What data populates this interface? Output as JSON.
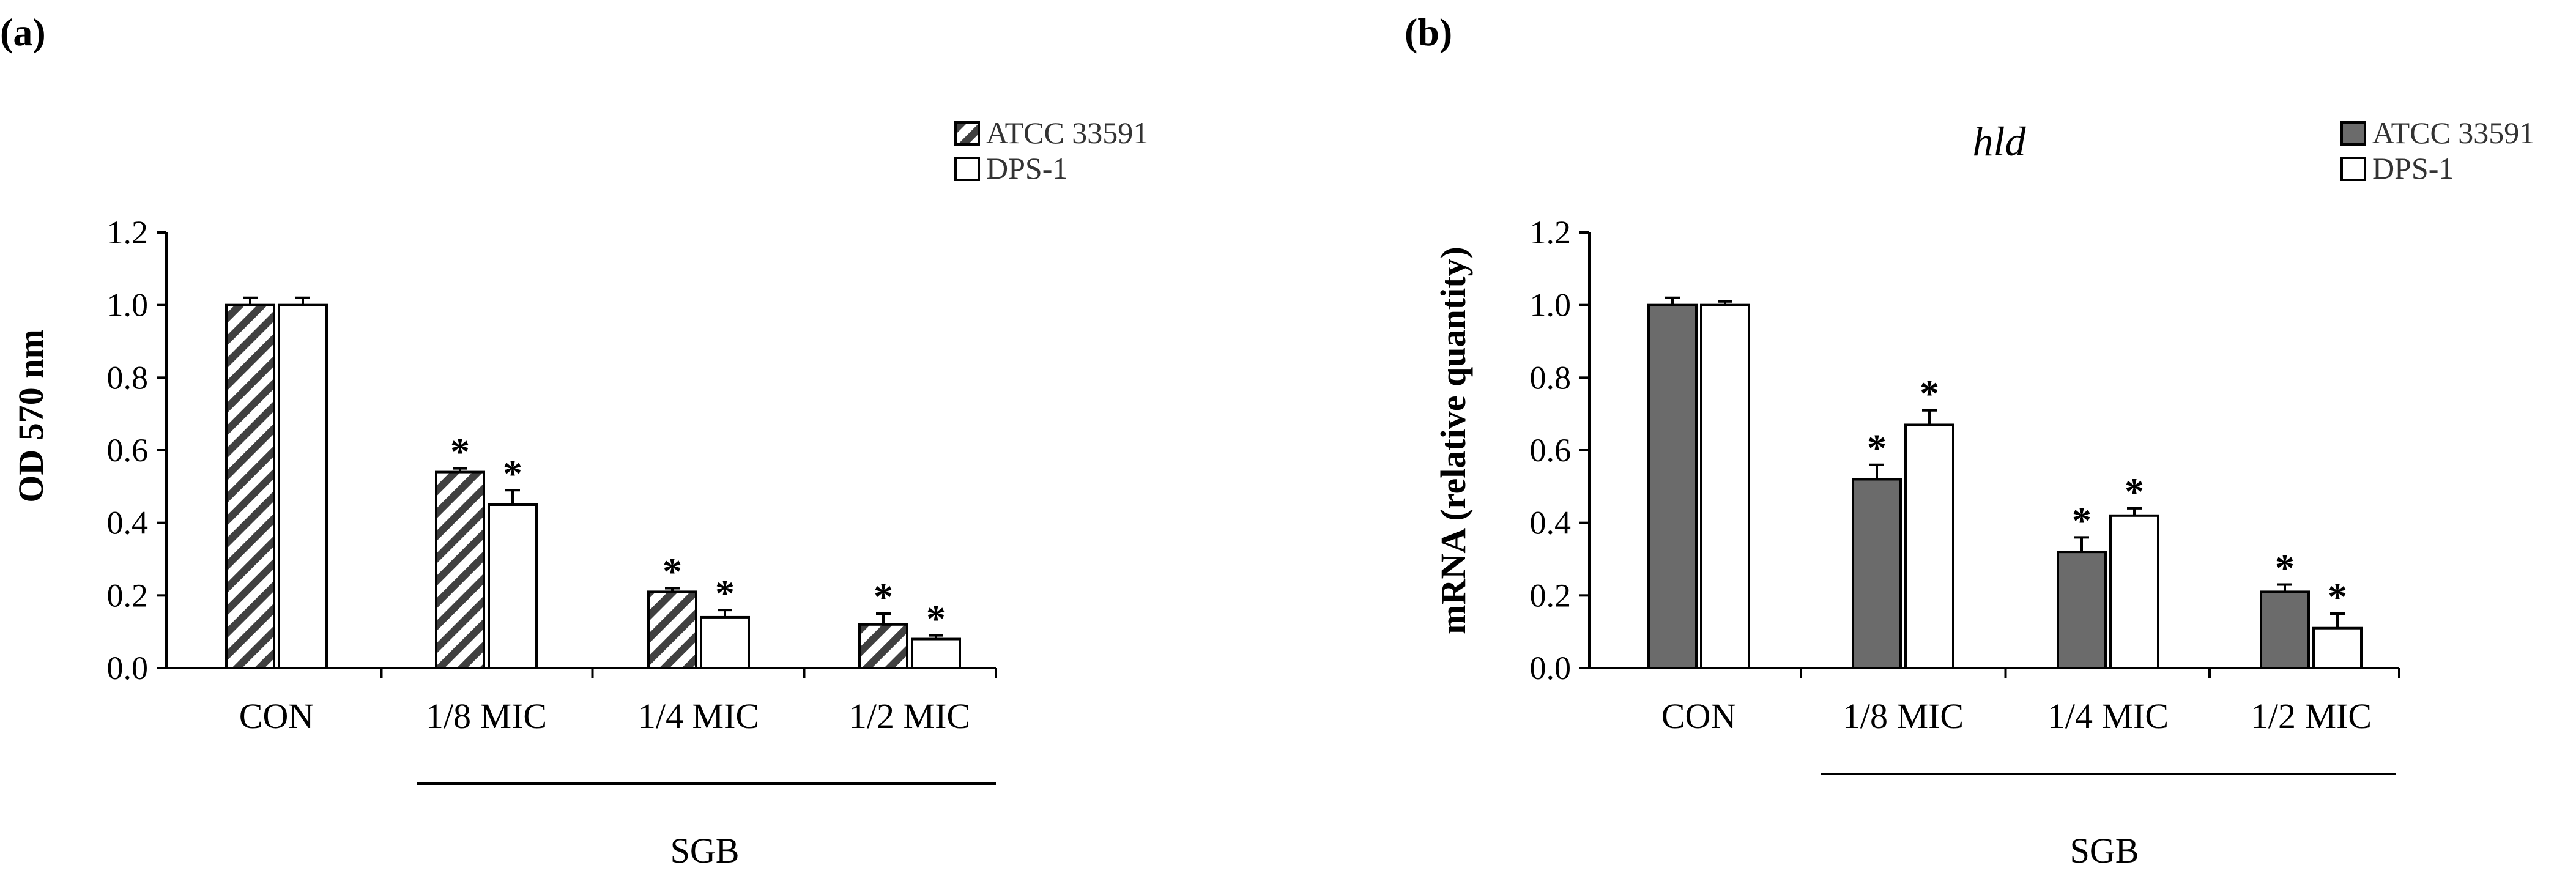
{
  "colors": {
    "atcc_fill_b": "#6b6b6b",
    "stroke": "#000000",
    "background": "#ffffff"
  },
  "chart_data": [
    {
      "panel": "(a)",
      "type": "bar",
      "title": "",
      "xlabel": "",
      "ylabel": "OD 570 nm",
      "ylim": [
        0,
        1.2
      ],
      "yticks": [
        "0.0",
        "0.2",
        "0.4",
        "0.6",
        "0.8",
        "1.0",
        "1.2"
      ],
      "categories": [
        "CON",
        "1/8 MIC",
        "1/4 MIC",
        "1/2 MIC"
      ],
      "group_label": "SGB",
      "legend_position": "top-right",
      "series": [
        {
          "name": "ATCC 33591",
          "pattern": "hatched",
          "values": [
            1.0,
            0.54,
            0.21,
            0.12
          ],
          "errors": [
            0.02,
            0.01,
            0.01,
            0.03
          ],
          "significant": [
            false,
            true,
            true,
            true
          ]
        },
        {
          "name": "DPS-1",
          "pattern": "white",
          "values": [
            1.0,
            0.45,
            0.14,
            0.08
          ],
          "errors": [
            0.02,
            0.04,
            0.02,
            0.01
          ],
          "significant": [
            false,
            true,
            true,
            true
          ]
        }
      ],
      "significance_marker": "*"
    },
    {
      "panel": "(b)",
      "type": "bar",
      "title": "hld",
      "xlabel": "",
      "ylabel": "mRNA (relative quantity)",
      "ylim": [
        0,
        1.2
      ],
      "yticks": [
        "0.0",
        "0.2",
        "0.4",
        "0.6",
        "0.8",
        "1.0",
        "1.2"
      ],
      "categories": [
        "CON",
        "1/8 MIC",
        "1/4 MIC",
        "1/2 MIC"
      ],
      "group_label": "SGB",
      "legend_position": "top-right",
      "series": [
        {
          "name": "ATCC 33591",
          "pattern": "gray",
          "values": [
            1.0,
            0.52,
            0.32,
            0.21
          ],
          "errors": [
            0.02,
            0.04,
            0.04,
            0.02
          ],
          "significant": [
            false,
            true,
            true,
            true
          ]
        },
        {
          "name": "DPS-1",
          "pattern": "white",
          "values": [
            1.0,
            0.67,
            0.42,
            0.11
          ],
          "errors": [
            0.01,
            0.04,
            0.02,
            0.04
          ],
          "significant": [
            false,
            true,
            true,
            true
          ]
        }
      ],
      "significance_marker": "*"
    }
  ]
}
